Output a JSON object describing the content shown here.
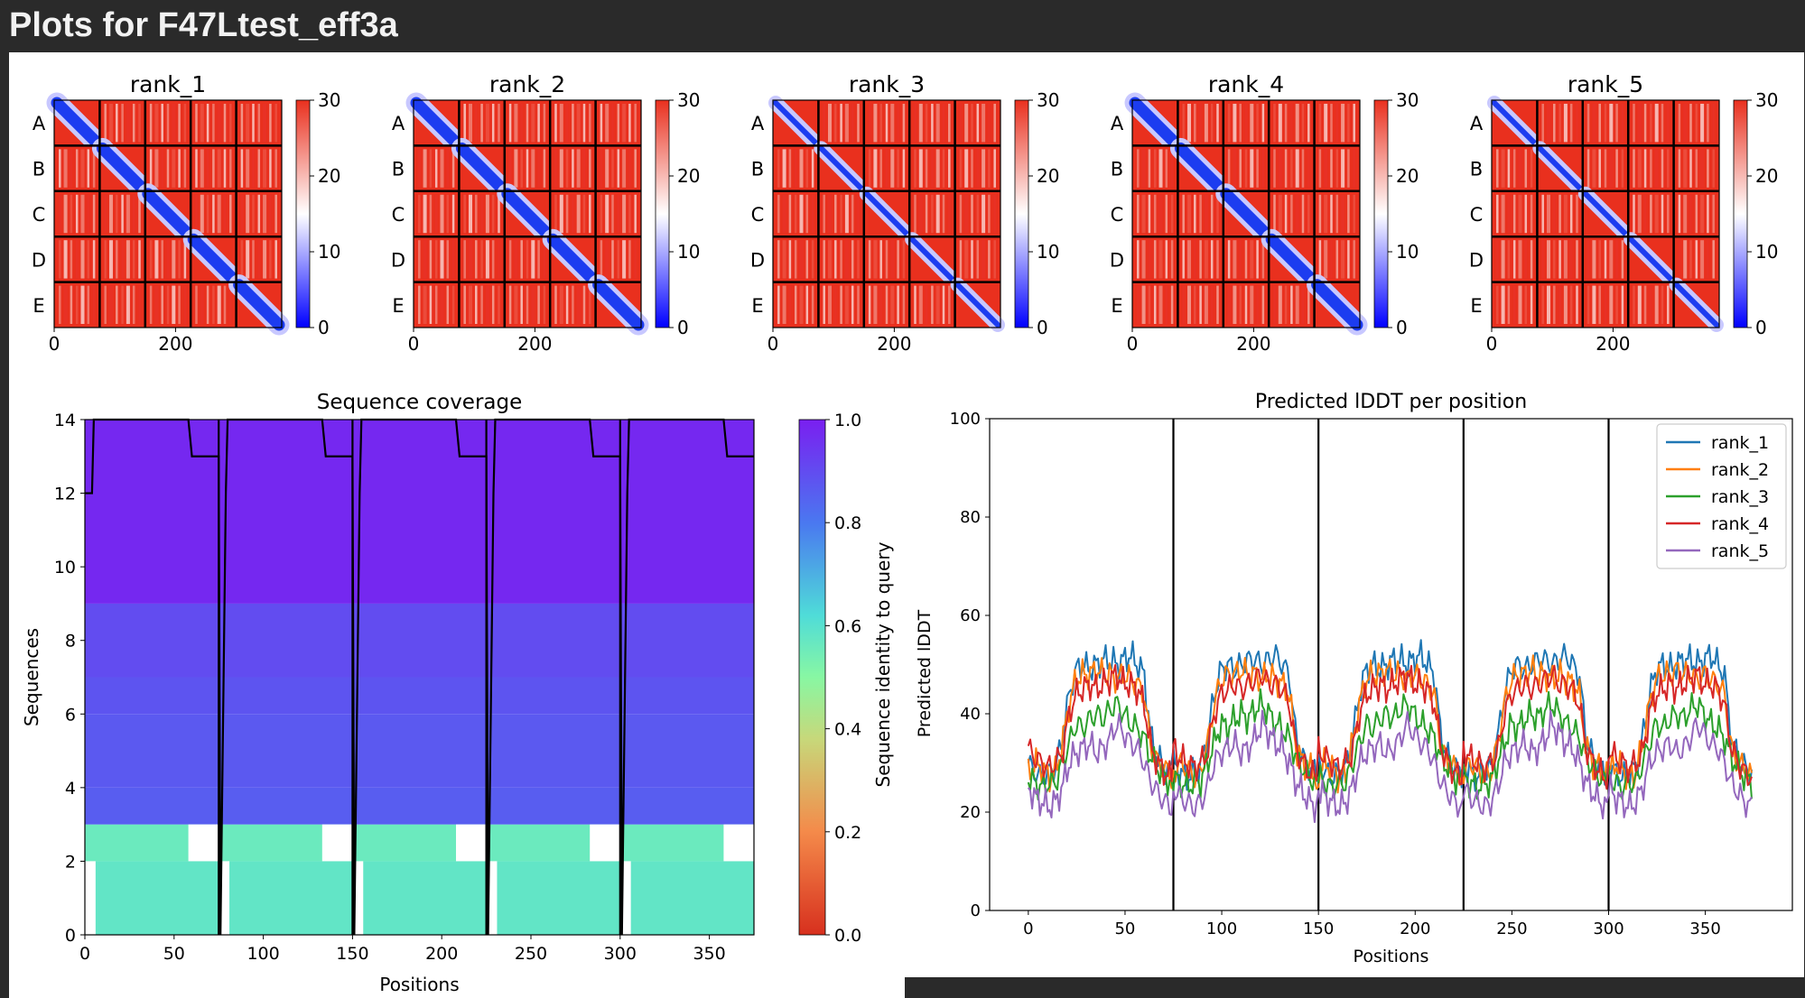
{
  "page": {
    "title": "Plots for F47Ltest_eff3a"
  },
  "colors": {
    "background": "#2a2a2a",
    "panel": "#ffffff",
    "pae_low": "#0000ff",
    "pae_high": "#e9301e",
    "coverage_high": "#7a1ff0",
    "coverage_low": "#d7301e"
  },
  "chart_data": [
    {
      "type": "heatmap",
      "name": "pae",
      "panels": [
        "rank_1",
        "rank_2",
        "rank_3",
        "rank_4",
        "rank_5"
      ],
      "chains": [
        "A",
        "B",
        "C",
        "D",
        "E"
      ],
      "chain_length": 75,
      "xlim": [
        0,
        375
      ],
      "xticks": [
        0,
        200
      ],
      "colorbar": {
        "min": 0,
        "max": 30,
        "ticks": [
          0,
          10,
          20,
          30
        ]
      }
    },
    {
      "type": "heatmap",
      "name": "coverage",
      "title": "Sequence coverage",
      "xlabel": "Positions",
      "ylabel": "Sequences",
      "xlim": [
        0,
        375
      ],
      "ylim": [
        0,
        14
      ],
      "xticks": [
        0,
        50,
        100,
        150,
        200,
        250,
        300,
        350
      ],
      "yticks": [
        0,
        2,
        4,
        6,
        8,
        10,
        12,
        14
      ],
      "chain_boundaries": [
        75,
        150,
        225,
        300
      ],
      "colorbar": {
        "label": "Sequence identity to query",
        "min": 0.0,
        "max": 1.0,
        "ticks": [
          "0.0",
          "0.2",
          "0.4",
          "0.6",
          "0.8",
          "1.0"
        ]
      },
      "rows": [
        {
          "y": [
            0,
            2
          ],
          "identity": 0.58
        },
        {
          "y": [
            2,
            3
          ],
          "identity": 0.56
        },
        {
          "y": [
            3,
            4
          ],
          "identity": 0.86
        },
        {
          "y": [
            4,
            6
          ],
          "identity": 0.87
        },
        {
          "y": [
            6,
            7
          ],
          "identity": 0.88
        },
        {
          "y": [
            7,
            9
          ],
          "identity": 0.9
        },
        {
          "y": [
            9,
            14
          ],
          "identity": 0.98
        }
      ],
      "gaps": [
        {
          "x": [
            0,
            6
          ],
          "y": [
            0,
            2
          ]
        },
        {
          "x": [
            75,
            81
          ],
          "y": [
            0,
            2
          ]
        },
        {
          "x": [
            150,
            156
          ],
          "y": [
            0,
            2
          ]
        },
        {
          "x": [
            225,
            231
          ],
          "y": [
            0,
            2
          ]
        },
        {
          "x": [
            300,
            306
          ],
          "y": [
            0,
            2
          ]
        },
        {
          "x": [
            58,
            75
          ],
          "y": [
            2,
            3
          ]
        },
        {
          "x": [
            133,
            150
          ],
          "y": [
            2,
            3
          ]
        },
        {
          "x": [
            208,
            225
          ],
          "y": [
            2,
            3
          ]
        },
        {
          "x": [
            283,
            300
          ],
          "y": [
            2,
            3
          ]
        },
        {
          "x": [
            358,
            375
          ],
          "y": [
            2,
            3
          ]
        }
      ],
      "coverage_line": {
        "x": [
          0,
          4,
          5,
          58,
          60,
          75,
          76,
          79,
          80,
          133,
          135,
          150,
          151,
          154,
          155,
          208,
          210,
          225,
          226,
          229,
          230,
          283,
          285,
          300,
          301,
          304,
          305,
          358,
          360,
          375
        ],
        "y": [
          12,
          12,
          14,
          14,
          13,
          13,
          0,
          12,
          14,
          14,
          13,
          13,
          0,
          12,
          14,
          14,
          13,
          13,
          0,
          12,
          14,
          14,
          13,
          13,
          0,
          12,
          14,
          14,
          13,
          13
        ]
      }
    },
    {
      "type": "line",
      "name": "plddt",
      "title": "Predicted lDDT per position",
      "xlabel": "Positions",
      "ylabel": "Predicted lDDT",
      "xlim": [
        -20,
        395
      ],
      "ylim": [
        0,
        100
      ],
      "xticks": [
        0,
        50,
        100,
        150,
        200,
        250,
        300,
        350
      ],
      "yticks": [
        0,
        20,
        40,
        60,
        80,
        100
      ],
      "chain_boundaries": [
        75,
        150,
        225,
        300
      ],
      "legend": "top-right",
      "series": [
        {
          "name": "rank_1",
          "color": "#1f77b4",
          "values": [
            30,
            28,
            27,
            28,
            29,
            35,
            44,
            49,
            50,
            49,
            50,
            51,
            51,
            50,
            51,
            52,
            50,
            48,
            35,
            31,
            29,
            28
          ]
        },
        {
          "name": "rank_2",
          "color": "#ff7f0e",
          "values": [
            28,
            30,
            29,
            27,
            28,
            34,
            42,
            47,
            48,
            48,
            49,
            48,
            48,
            47,
            48,
            47,
            46,
            44,
            33,
            30,
            29,
            27
          ]
        },
        {
          "name": "rank_3",
          "color": "#2ca02c",
          "values": [
            27,
            26,
            25,
            26,
            26,
            30,
            34,
            38,
            37,
            39,
            40,
            39,
            41,
            42,
            40,
            38,
            37,
            35,
            31,
            29,
            27,
            26
          ]
        },
        {
          "name": "rank_4",
          "color": "#d62728",
          "values": [
            33,
            31,
            30,
            29,
            30,
            32,
            40,
            44,
            45,
            46,
            45,
            46,
            47,
            48,
            46,
            46,
            45,
            42,
            33,
            30,
            28,
            27
          ]
        },
        {
          "name": "rank_5",
          "color": "#9467bd",
          "values": [
            25,
            23,
            22,
            21,
            22,
            25,
            30,
            32,
            33,
            34,
            32,
            33,
            35,
            38,
            36,
            34,
            33,
            30,
            26,
            24,
            22,
            21
          ]
        }
      ]
    }
  ]
}
